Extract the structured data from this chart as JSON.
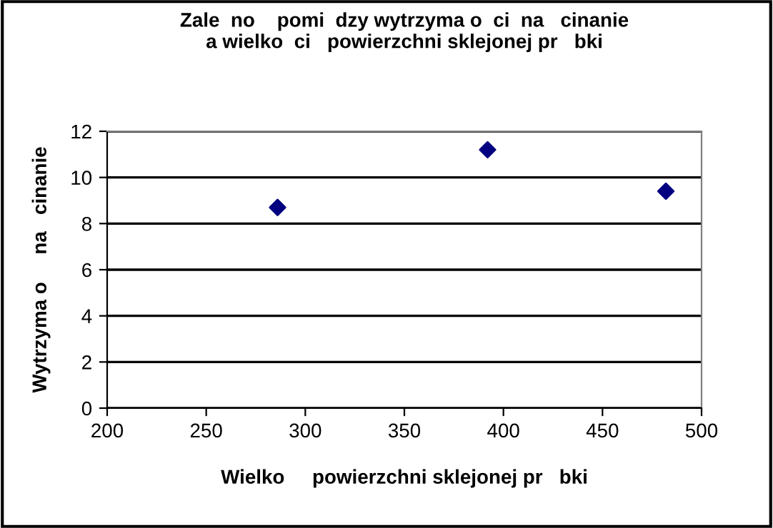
{
  "chart_data": {
    "type": "scatter",
    "title": "Zale  no    pomi  dzy wytrzyma o  ci  na   cinanie\na wielko  ci   powierzchni sklejonej pr   bki",
    "xlabel": "Wielko     powierzchni sklejonej pr   bki",
    "ylabel": "Wytrzyma o     na   cinanie",
    "x": [
      286,
      392,
      482
    ],
    "series": [
      {
        "color": "#000080",
        "values": [
          8.7,
          11.2,
          9.4
        ]
      }
    ],
    "xlim": [
      200,
      500
    ],
    "xticks": [
      200,
      250,
      300,
      350,
      400,
      450,
      500
    ],
    "ylim": [
      0,
      12
    ],
    "yticks": [
      0,
      2,
      4,
      6,
      8,
      10,
      12
    ],
    "grid": "y",
    "marker": "diamond",
    "legend": false
  }
}
